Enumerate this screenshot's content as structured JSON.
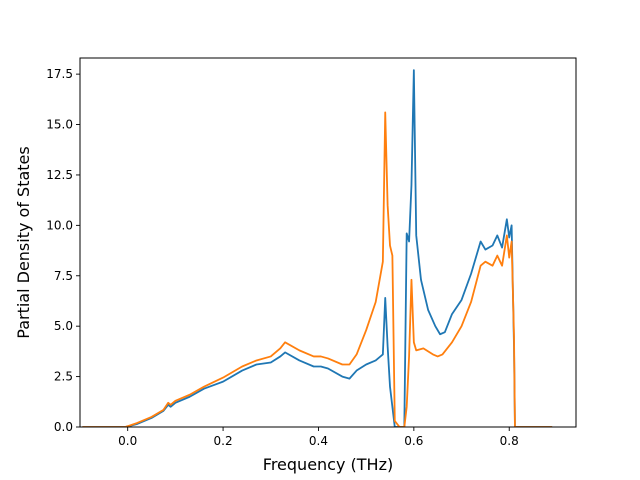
{
  "chart_data": {
    "type": "line",
    "title": "",
    "xlabel": "Frequency (THz)",
    "ylabel": "Partial Density of States",
    "xlim": [
      -0.1,
      0.94
    ],
    "ylim": [
      0.0,
      18.3
    ],
    "grid": false,
    "legend": "none",
    "x_ticks": [
      0.0,
      0.2,
      0.4,
      0.6,
      0.8
    ],
    "x_tick_labels": [
      "0.0",
      "0.2",
      "0.4",
      "0.6",
      "0.8"
    ],
    "y_ticks": [
      0.0,
      2.5,
      5.0,
      7.5,
      10.0,
      12.5,
      15.0,
      17.5
    ],
    "y_tick_labels": [
      "0.0",
      "2.5",
      "5.0",
      "7.5",
      "10.0",
      "12.5",
      "15.0",
      "17.5"
    ],
    "series": [
      {
        "color": "#1f77b4",
        "x": [
          -0.095,
          -0.005,
          0.02,
          0.05,
          0.075,
          0.085,
          0.09,
          0.1,
          0.13,
          0.16,
          0.2,
          0.24,
          0.27,
          0.3,
          0.32,
          0.33,
          0.36,
          0.39,
          0.405,
          0.42,
          0.45,
          0.465,
          0.48,
          0.5,
          0.52,
          0.535,
          0.54,
          0.545,
          0.55,
          0.56,
          0.57,
          0.58,
          0.585,
          0.59,
          0.595,
          0.6,
          0.605,
          0.615,
          0.63,
          0.645,
          0.655,
          0.665,
          0.68,
          0.7,
          0.72,
          0.74,
          0.75,
          0.765,
          0.775,
          0.785,
          0.795,
          0.8,
          0.805,
          0.81,
          0.812,
          0.815,
          0.89
        ],
        "y": [
          0.0,
          0.0,
          0.15,
          0.45,
          0.8,
          1.1,
          1.0,
          1.2,
          1.5,
          1.9,
          2.25,
          2.8,
          3.1,
          3.2,
          3.5,
          3.7,
          3.3,
          3.0,
          3.0,
          2.9,
          2.5,
          2.4,
          2.8,
          3.1,
          3.3,
          3.6,
          6.4,
          4.0,
          2.0,
          0.0,
          0.0,
          0.0,
          9.6,
          9.2,
          12.0,
          17.7,
          9.5,
          7.3,
          5.8,
          5.0,
          4.6,
          4.7,
          5.6,
          6.3,
          7.6,
          9.2,
          8.8,
          9.0,
          9.5,
          8.9,
          10.3,
          9.4,
          10.0,
          4.0,
          0.0,
          0.0,
          0.0
        ]
      },
      {
        "color": "#ff7f0e",
        "x": [
          -0.095,
          -0.005,
          0.02,
          0.05,
          0.075,
          0.085,
          0.09,
          0.1,
          0.13,
          0.16,
          0.2,
          0.24,
          0.27,
          0.3,
          0.32,
          0.33,
          0.36,
          0.39,
          0.405,
          0.42,
          0.45,
          0.465,
          0.48,
          0.5,
          0.52,
          0.535,
          0.54,
          0.545,
          0.55,
          0.555,
          0.56,
          0.57,
          0.58,
          0.585,
          0.59,
          0.595,
          0.6,
          0.605,
          0.62,
          0.64,
          0.65,
          0.66,
          0.68,
          0.7,
          0.72,
          0.74,
          0.75,
          0.765,
          0.775,
          0.785,
          0.795,
          0.8,
          0.805,
          0.81,
          0.812,
          0.815,
          0.89
        ],
        "y": [
          0.0,
          0.0,
          0.2,
          0.5,
          0.85,
          1.2,
          1.1,
          1.3,
          1.6,
          2.0,
          2.45,
          3.0,
          3.3,
          3.5,
          3.9,
          4.2,
          3.8,
          3.5,
          3.5,
          3.4,
          3.1,
          3.1,
          3.6,
          4.8,
          6.2,
          8.2,
          15.6,
          11.0,
          9.0,
          8.5,
          0.3,
          0.0,
          0.0,
          1.0,
          3.5,
          7.3,
          4.2,
          3.8,
          3.9,
          3.6,
          3.5,
          3.6,
          4.2,
          5.0,
          6.2,
          8.0,
          8.2,
          8.0,
          8.5,
          8.0,
          9.5,
          8.4,
          9.2,
          4.5,
          0.0,
          0.0,
          0.0
        ]
      }
    ]
  }
}
